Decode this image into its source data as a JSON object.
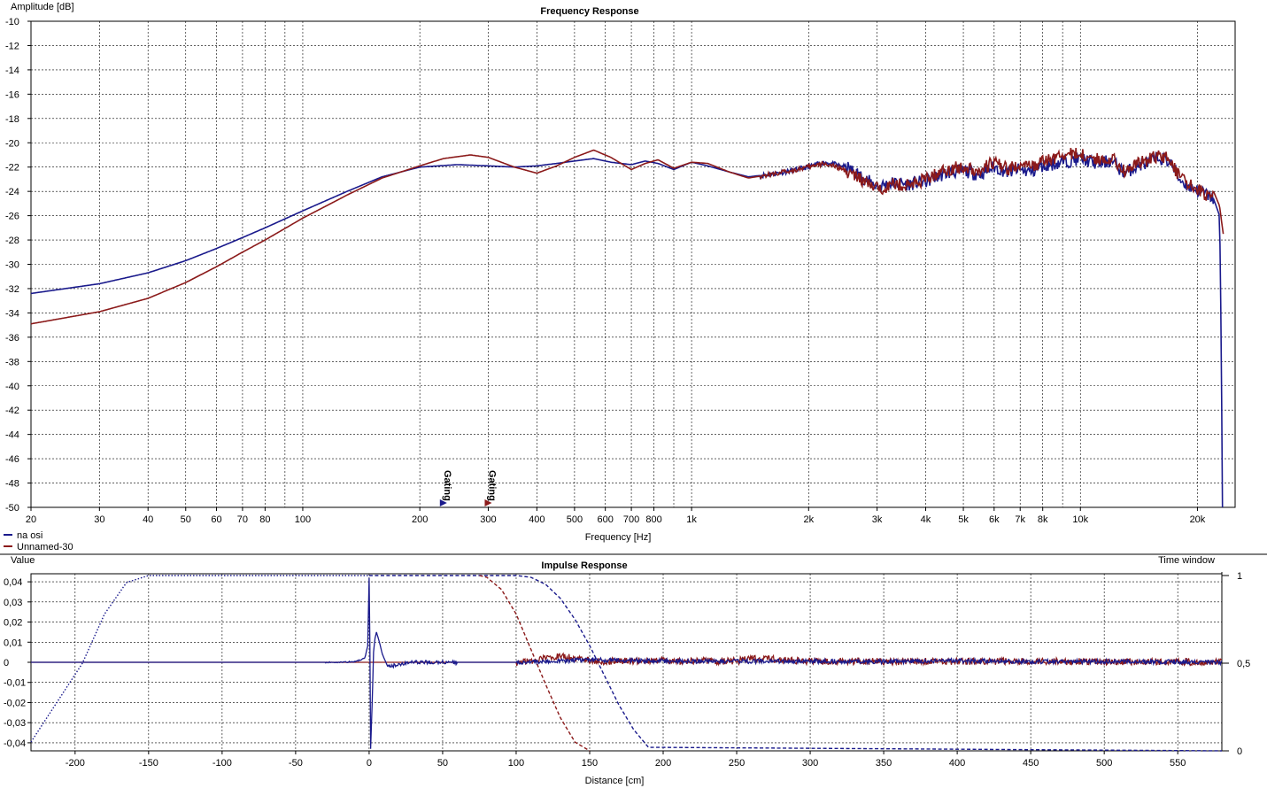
{
  "colors": {
    "blue": "#1a1a8c",
    "red": "#8b1a1a",
    "grid": "#000000",
    "bg": "#ffffff"
  },
  "chart_data": [
    {
      "type": "line",
      "title": "Frequency Response",
      "xlabel": "Frequency [Hz]",
      "ylabel": "Amplitude [dB]",
      "xscale": "log",
      "xlim": [
        20,
        25000
      ],
      "ylim": [
        -50,
        -10
      ],
      "grid": true,
      "legend_placement": "bottom-left",
      "x_ticks": [
        20,
        30,
        40,
        50,
        60,
        70,
        80,
        100,
        200,
        300,
        400,
        500,
        600,
        700,
        800,
        1000,
        2000,
        3000,
        4000,
        5000,
        6000,
        7000,
        8000,
        10000,
        20000
      ],
      "x_tick_labels": [
        "20",
        "30",
        "40",
        "50",
        "60",
        "70",
        "80",
        "100",
        "200",
        "300",
        "400",
        "500",
        "600",
        "700",
        "800",
        "1k",
        "2k",
        "3k",
        "4k",
        "5k",
        "6k",
        "7k",
        "8k",
        "10k",
        "20k"
      ],
      "y_ticks": [
        -10,
        -12,
        -14,
        -16,
        -18,
        -20,
        -22,
        -24,
        -26,
        -28,
        -30,
        -32,
        -34,
        -36,
        -38,
        -40,
        -42,
        -44,
        -46,
        -48,
        -50
      ],
      "markers": [
        {
          "label": "Gating",
          "x": 230,
          "series": "na osi"
        },
        {
          "label": "Gating",
          "x": 300,
          "series": "Unnamed-30"
        }
      ],
      "series": [
        {
          "name": "na osi",
          "color": "#1a1a8c",
          "x": [
            20,
            30,
            40,
            50,
            60,
            70,
            80,
            100,
            130,
            160,
            200,
            250,
            300,
            350,
            400,
            450,
            500,
            560,
            620,
            700,
            760,
            820,
            900,
            1000,
            1100,
            1250,
            1400,
            1600,
            1800,
            2000,
            2200,
            2500,
            2800,
            3000,
            3300,
            3600,
            4000,
            4500,
            5000,
            5500,
            6000,
            6500,
            7000,
            7500,
            8000,
            9000,
            10000,
            11000,
            12000,
            13000,
            14000,
            15000,
            16000,
            17000,
            18000,
            19000,
            20000,
            21000,
            22000,
            22800,
            23000,
            23200
          ],
          "y": [
            -32.4,
            -31.6,
            -30.7,
            -29.7,
            -28.7,
            -27.8,
            -27.0,
            -25.6,
            -24.0,
            -22.8,
            -22.0,
            -21.8,
            -21.9,
            -22.0,
            -21.9,
            -21.7,
            -21.5,
            -21.3,
            -21.6,
            -21.8,
            -21.5,
            -21.7,
            -22.2,
            -21.6,
            -21.9,
            -22.4,
            -22.8,
            -22.6,
            -22.3,
            -22.0,
            -21.6,
            -22.0,
            -23.0,
            -23.6,
            -23.3,
            -23.4,
            -23.2,
            -22.5,
            -22.3,
            -22.6,
            -22.0,
            -22.4,
            -22.2,
            -22.4,
            -21.9,
            -21.6,
            -21.3,
            -21.7,
            -21.5,
            -22.5,
            -21.9,
            -21.6,
            -21.2,
            -21.6,
            -23.0,
            -23.6,
            -23.9,
            -24.2,
            -24.6,
            -26.0,
            -35.0,
            -50.0
          ]
        },
        {
          "name": "Unnamed-30",
          "color": "#8b1a1a",
          "x": [
            20,
            30,
            40,
            50,
            60,
            70,
            80,
            100,
            130,
            160,
            200,
            230,
            270,
            300,
            350,
            400,
            450,
            500,
            560,
            620,
            700,
            760,
            820,
            900,
            1000,
            1100,
            1250,
            1400,
            1600,
            1800,
            2000,
            2200,
            2500,
            2800,
            3000,
            3300,
            3600,
            4000,
            4500,
            5000,
            5500,
            6000,
            6500,
            7000,
            7500,
            8000,
            9000,
            10000,
            11000,
            12000,
            13000,
            14000,
            15000,
            16000,
            17000,
            18000,
            19000,
            20000,
            21000,
            22000,
            22800,
            23300
          ],
          "y": [
            -34.9,
            -33.9,
            -32.8,
            -31.5,
            -30.2,
            -29.0,
            -28.0,
            -26.2,
            -24.3,
            -22.9,
            -21.9,
            -21.3,
            -21.0,
            -21.2,
            -22.0,
            -22.5,
            -21.9,
            -21.2,
            -20.6,
            -21.2,
            -22.2,
            -21.7,
            -21.4,
            -22.1,
            -21.6,
            -21.7,
            -22.4,
            -22.9,
            -22.6,
            -22.3,
            -22.0,
            -21.7,
            -22.3,
            -23.3,
            -23.8,
            -23.4,
            -23.5,
            -23.0,
            -22.2,
            -22.0,
            -22.3,
            -21.6,
            -22.2,
            -21.8,
            -22.0,
            -21.6,
            -21.0,
            -20.9,
            -21.4,
            -21.2,
            -22.3,
            -21.7,
            -21.4,
            -21.0,
            -21.3,
            -22.9,
            -23.4,
            -23.8,
            -24.3,
            -24.0,
            -25.2,
            -27.5
          ]
        }
      ]
    },
    {
      "type": "line",
      "title": "Impulse Response",
      "xlabel": "Distance [cm]",
      "ylabel": "Value",
      "y2label": "Time window",
      "xlim": [
        -230,
        580
      ],
      "ylim": [
        -0.044,
        0.044
      ],
      "y2lim": [
        0,
        1
      ],
      "grid": true,
      "x_ticks": [
        -200,
        -150,
        -100,
        -50,
        0,
        50,
        100,
        150,
        200,
        250,
        300,
        350,
        400,
        450,
        500,
        550
      ],
      "x_tick_labels": [
        "-200",
        "-150",
        "-100",
        "-50",
        "0",
        "50",
        "100",
        "150",
        "200",
        "250",
        "300",
        "350",
        "400",
        "450",
        "500",
        "550"
      ],
      "y_ticks": [
        0.04,
        0.03,
        0.02,
        0.01,
        0,
        -0.01,
        -0.02,
        -0.03,
        -0.04
      ],
      "y_tick_labels": [
        "0,04",
        "0,03",
        "0,02",
        "0,01",
        "0",
        "-0,01",
        "-0,02",
        "-0,03",
        "-0,04"
      ],
      "y2_ticks": [
        1,
        0.5,
        0
      ],
      "y2_tick_labels": [
        "1",
        "0,5",
        "0"
      ],
      "windows": [
        {
          "series": "na osi",
          "style": "dotted",
          "x": [
            -230,
            -195,
            -180,
            -165,
            -150,
            0
          ],
          "y": [
            0.05,
            0.5,
            0.78,
            0.96,
            1.0,
            1.0
          ]
        },
        {
          "series": "na osi",
          "style": "dashed",
          "x": [
            0,
            0.1,
            100,
            110,
            120,
            130,
            140,
            150,
            160,
            170,
            180,
            190,
            580
          ],
          "y": [
            1.0,
            1.0,
            1.0,
            0.99,
            0.95,
            0.87,
            0.75,
            0.6,
            0.43,
            0.26,
            0.12,
            0.02,
            0.0
          ]
        },
        {
          "series": "Unnamed-30",
          "style": "dashed",
          "x": [
            75,
            80,
            90,
            100,
            110,
            120,
            130,
            140,
            150
          ],
          "y": [
            1.0,
            0.99,
            0.92,
            0.78,
            0.58,
            0.38,
            0.19,
            0.05,
            0.0
          ]
        }
      ],
      "series": [
        {
          "name": "na osi",
          "color": "#1a1a8c",
          "x": [
            -230,
            -30,
            -10,
            -3,
            -1,
            0,
            0.5,
            1,
            2,
            3,
            4,
            5,
            7,
            9,
            12,
            15,
            20,
            30,
            50,
            100,
            130,
            150,
            200,
            250,
            300,
            350,
            400,
            450,
            500,
            550,
            580
          ],
          "y": [
            0,
            0,
            0.0002,
            0.002,
            0.008,
            0.042,
            0.012,
            -0.043,
            -0.022,
            0.005,
            0.012,
            0.015,
            0.01,
            0.004,
            -0.001,
            -0.002,
            -0.001,
            0.0002,
            0,
            0,
            0.0008,
            0.0012,
            0.0006,
            0.0005,
            0.0005,
            0.0004,
            0.0008,
            0.0004,
            0.0003,
            0.0003,
            0.0
          ]
        },
        {
          "name": "Unnamed-30",
          "color": "#8b1a1a",
          "x": [
            -230,
            100,
            110,
            120,
            130,
            140,
            150,
            160,
            200,
            250,
            260,
            300,
            350,
            400,
            450,
            500,
            550,
            580
          ],
          "y": [
            0,
            0,
            0.0005,
            0.002,
            0.003,
            0.002,
            0.001,
            0.0005,
            0.0008,
            0.0006,
            0.002,
            0.0006,
            0.0004,
            0.0005,
            0.0004,
            0.0004,
            0.0003,
            0.0
          ]
        }
      ]
    }
  ]
}
